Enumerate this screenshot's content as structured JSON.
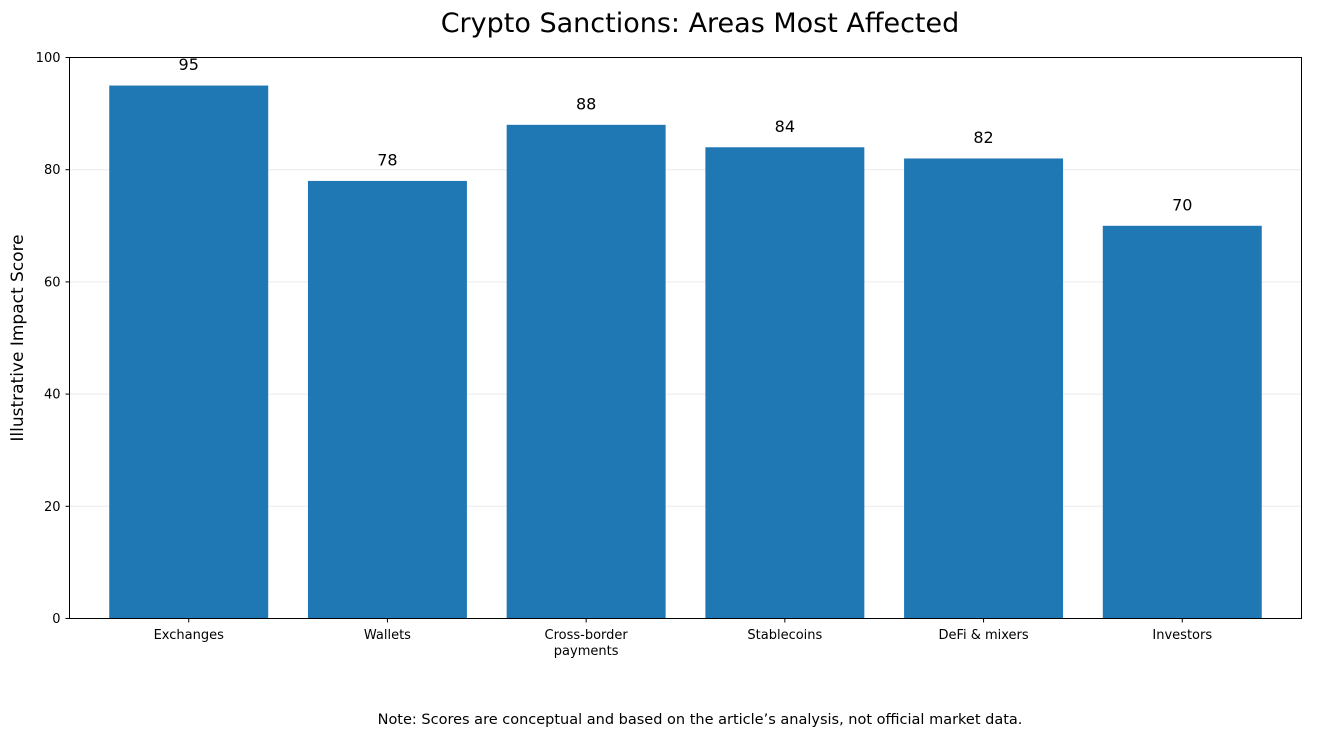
{
  "chart_data": {
    "type": "bar",
    "title": "Crypto Sanctions: Areas Most Affected",
    "xlabel": "",
    "ylabel": "Illustrative Impact Score",
    "categories": [
      [
        "Exchanges"
      ],
      [
        "Wallets"
      ],
      [
        "Cross-border",
        "payments"
      ],
      [
        "Stablecoins"
      ],
      [
        "DeFi & mixers"
      ],
      [
        "Investors"
      ]
    ],
    "values": [
      95,
      78,
      88,
      84,
      82,
      70
    ],
    "ylim": [
      0,
      100
    ],
    "yticks": [
      0,
      20,
      40,
      60,
      80,
      100
    ],
    "grid": "y-axis, light",
    "legend": "none",
    "data_labels": true,
    "bar_color": "#1f77b4",
    "grid_color": "#ebebeb"
  },
  "note": "Note: Scores are conceptual and based on the article’s analysis, not official market data."
}
